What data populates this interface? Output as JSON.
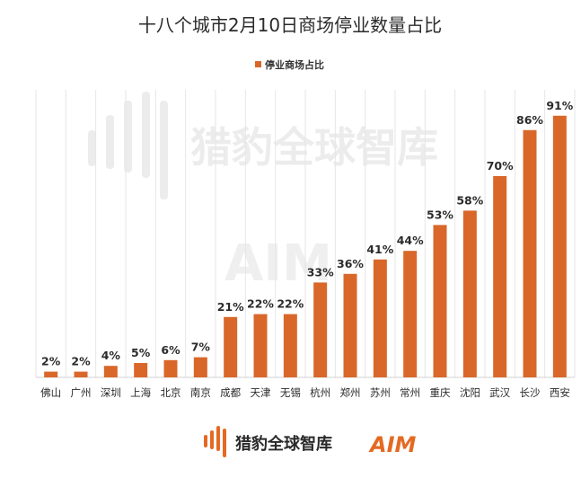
{
  "chart_data": {
    "type": "bar",
    "title": "十八个城市2月10日商场停业数量占比",
    "xlabel": "",
    "ylabel": "",
    "legend_position": "top-center",
    "grid": true,
    "ylim": [
      0,
      100
    ],
    "categories": [
      "佛山",
      "广州",
      "深圳",
      "上海",
      "北京",
      "南京",
      "成都",
      "天津",
      "无锡",
      "杭州",
      "郑州",
      "苏州",
      "常州",
      "重庆",
      "沈阳",
      "武汉",
      "长沙",
      "西安"
    ],
    "series": [
      {
        "name": "停业商场占比",
        "values": [
          2,
          2,
          4,
          5,
          6,
          7,
          21,
          22,
          22,
          33,
          36,
          41,
          44,
          53,
          58,
          70,
          86,
          91
        ],
        "labels": [
          "2%",
          "2%",
          "4%",
          "5%",
          "6%",
          "7%",
          "21%",
          "22%",
          "22%",
          "33%",
          "36%",
          "41%",
          "44%",
          "53%",
          "58%",
          "70%",
          "86%",
          "91%"
        ],
        "color": "#d9672a"
      }
    ]
  },
  "watermark": {
    "text": "猎豹全球智库",
    "aim": "AIM"
  },
  "footer": {
    "logo_text": "猎豹全球智库",
    "aim_logo": "AIM"
  },
  "colors": {
    "bar": "#d9672a",
    "grid": "#e6e6e6",
    "logo_orange": "#e46a22"
  }
}
